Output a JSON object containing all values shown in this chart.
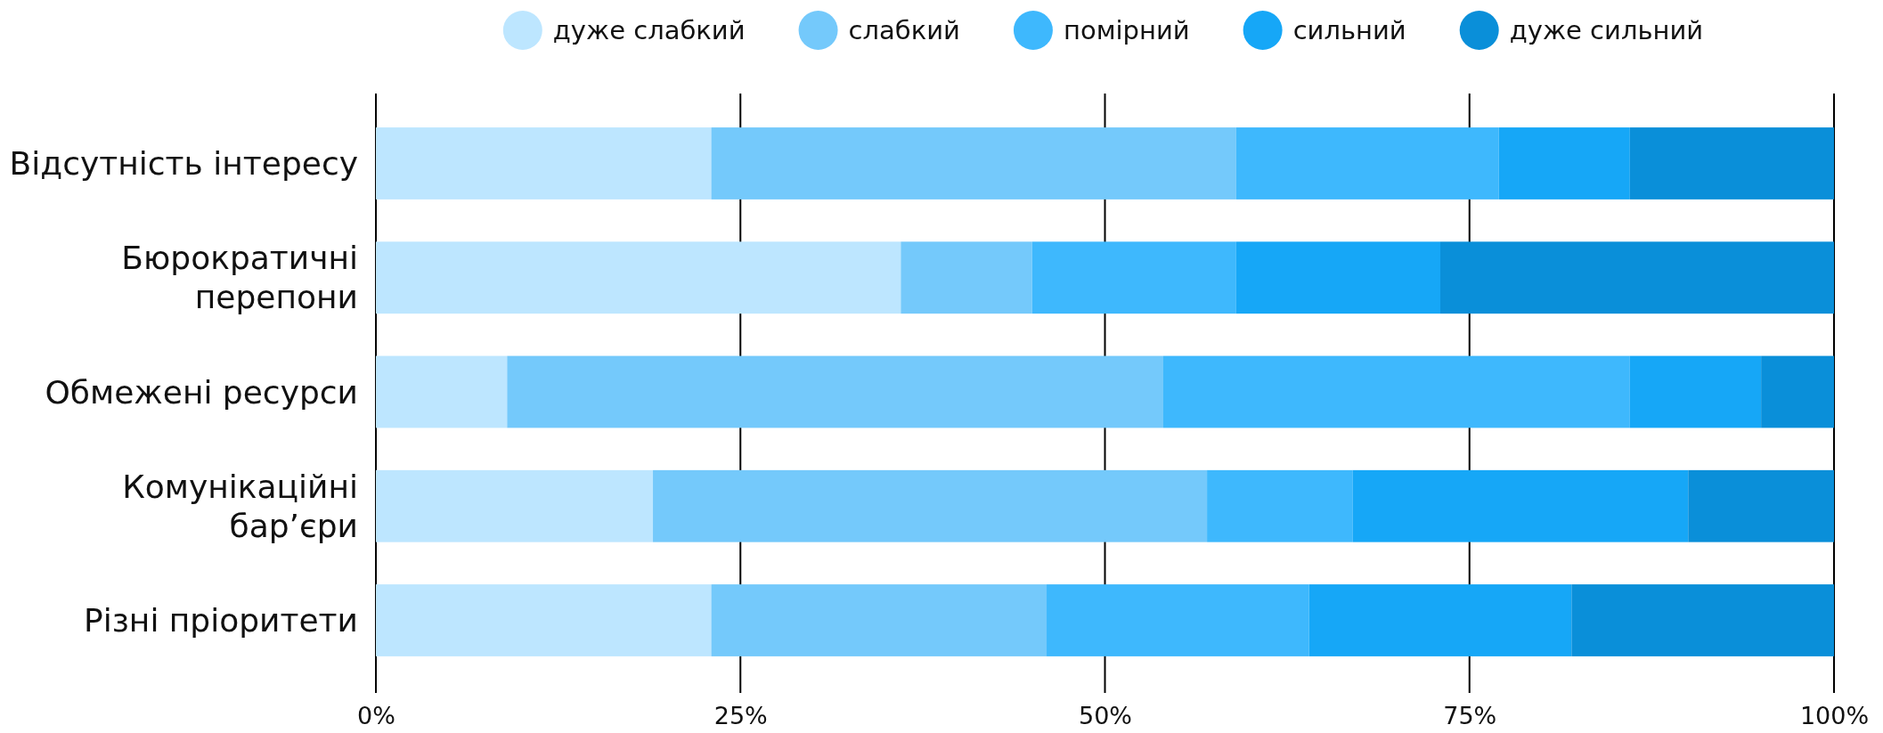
{
  "chart_data": {
    "type": "bar",
    "orientation": "horizontal",
    "stacked": true,
    "categories": [
      "Відсутність інтересу",
      "Бюрократичні\nперепони",
      "Обмежені ресурси",
      "Комунікаційні\nбар’єри",
      "Різні пріоритети"
    ],
    "series": [
      {
        "name": "дуже слабкий",
        "color": "#bde6ff",
        "values": [
          23,
          36,
          9,
          19,
          23
        ]
      },
      {
        "name": "слабкий",
        "color": "#74c9fb",
        "values": [
          36,
          9,
          45,
          38,
          23
        ]
      },
      {
        "name": "помірний",
        "color": "#3eb8fd",
        "values": [
          18,
          14,
          32,
          10,
          18
        ]
      },
      {
        "name": "сильний",
        "color": "#16a7f7",
        "values": [
          9,
          14,
          9,
          23,
          18
        ]
      },
      {
        "name": "дуже сильний",
        "color": "#0a8fd9",
        "values": [
          14,
          27,
          5,
          10,
          18
        ]
      }
    ],
    "xlim": [
      0,
      100
    ],
    "xticks": [
      {
        "value": 0,
        "label": "0%"
      },
      {
        "value": 25,
        "label": "25%"
      },
      {
        "value": 50,
        "label": "50%"
      },
      {
        "value": 75,
        "label": "75%"
      },
      {
        "value": 100,
        "label": "100%"
      }
    ],
    "grid": "x",
    "legend": "top"
  }
}
